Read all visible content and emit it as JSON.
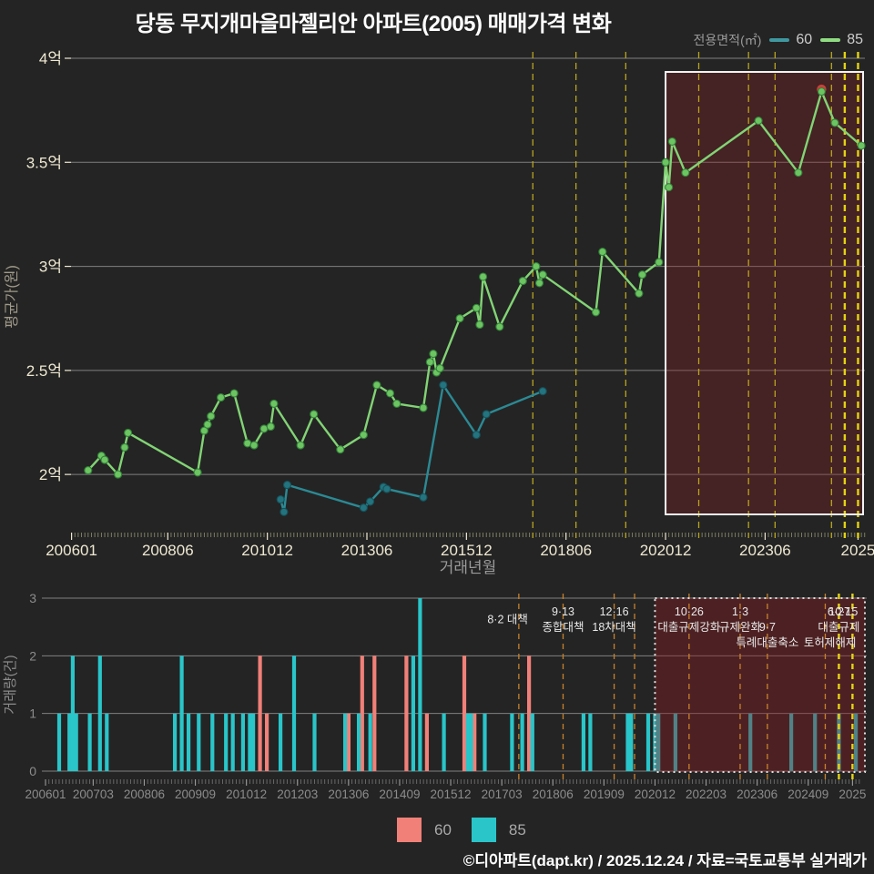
{
  "title": "당동 무지개마을마젤리안 아파트(2005) 매매가격 변화",
  "top_legend": {
    "label": "전용면적(㎡)",
    "items": [
      {
        "name": "60",
        "color": "#3f98a0"
      },
      {
        "name": "85",
        "color": "#8fdc82"
      }
    ]
  },
  "chart_data": [
    {
      "type": "line",
      "title": "매매가격 변화 (평균가)",
      "xlabel": "거래년월",
      "ylabel": "평균가(원)",
      "ylim": [
        1.7,
        4.0
      ],
      "grid": true,
      "yticks": [
        {
          "label": "2억",
          "value": 2.0
        },
        {
          "label": "2.5억",
          "value": 2.5
        },
        {
          "label": "3억",
          "value": 3.0
        },
        {
          "label": "3.5억",
          "value": 3.5
        },
        {
          "label": "4억",
          "value": 4.0
        }
      ],
      "xticks": [
        {
          "label": "200601",
          "month": "200601"
        },
        {
          "label": "200806",
          "month": "200806"
        },
        {
          "label": "201012",
          "month": "201012"
        },
        {
          "label": "201306",
          "month": "201306"
        },
        {
          "label": "201512",
          "month": "201512"
        },
        {
          "label": "201806",
          "month": "201806"
        },
        {
          "label": "202012",
          "month": "202012"
        },
        {
          "label": "202306",
          "month": "202306"
        },
        {
          "label": "2025",
          "month": "202510"
        }
      ],
      "series": [
        {
          "name": "60",
          "color": "#2b8a94",
          "marker": "#23747e",
          "edge": "#16525b",
          "points": [
            [
              "201104",
              1.88
            ],
            [
              "201105",
              1.82
            ],
            [
              "201106",
              1.95
            ],
            [
              "201305",
              1.84
            ],
            [
              "201307",
              1.87
            ],
            [
              "201311",
              1.94
            ],
            [
              "201312",
              1.93
            ],
            [
              "201411",
              1.89
            ],
            [
              "201505",
              2.43
            ],
            [
              "201603",
              2.19
            ],
            [
              "201606",
              2.29
            ],
            [
              "201711",
              2.4
            ]
          ]
        },
        {
          "name": "85",
          "color": "#82d475",
          "marker": "#6cc561",
          "edge": "#33803a",
          "points": [
            [
              "200606",
              2.02
            ],
            [
              "200610",
              2.09
            ],
            [
              "200611",
              2.07
            ],
            [
              "200703",
              2.0
            ],
            [
              "200705",
              2.13
            ],
            [
              "200706",
              2.2
            ],
            [
              "200903",
              2.01
            ],
            [
              "200905",
              2.21
            ],
            [
              "200906",
              2.24
            ],
            [
              "200907",
              2.28
            ],
            [
              "200910",
              2.37
            ],
            [
              "201002",
              2.39
            ],
            [
              "201006",
              2.15
            ],
            [
              "201008",
              2.14
            ],
            [
              "201011",
              2.22
            ],
            [
              "201101",
              2.23
            ],
            [
              "201102",
              2.34
            ],
            [
              "201110",
              2.14
            ],
            [
              "201202",
              2.29
            ],
            [
              "201210",
              2.12
            ],
            [
              "201305",
              2.19
            ],
            [
              "201309",
              2.43
            ],
            [
              "201401",
              2.39
            ],
            [
              "201403",
              2.34
            ],
            [
              "201411",
              2.32
            ],
            [
              "201501",
              2.54
            ],
            [
              "201502",
              2.58
            ],
            [
              "201503",
              2.49
            ],
            [
              "201504",
              2.51
            ],
            [
              "201510",
              2.75
            ],
            [
              "201603",
              2.8
            ],
            [
              "201604",
              2.72
            ],
            [
              "201605",
              2.95
            ],
            [
              "201610",
              2.71
            ],
            [
              "201705",
              2.93
            ],
            [
              "201709",
              3.0
            ],
            [
              "201710",
              2.92
            ],
            [
              "201711",
              2.96
            ],
            [
              "201903",
              2.78
            ],
            [
              "201905",
              3.07
            ],
            [
              "202004",
              2.87
            ],
            [
              "202005",
              2.96
            ],
            [
              "202010",
              3.02
            ],
            [
              "202012",
              3.5
            ],
            [
              "202101",
              3.38
            ],
            [
              "202102",
              3.6
            ],
            [
              "202106",
              3.45
            ],
            [
              "202304",
              3.7
            ],
            [
              "202404",
              3.45
            ],
            [
              "202411",
              3.84
            ],
            [
              "202503",
              3.69
            ],
            [
              "202511",
              3.58
            ]
          ],
          "max_point": {
            "month": "202411",
            "value": 3.84,
            "color": "#c9413a"
          }
        }
      ],
      "highlight_box": {
        "from": "202012",
        "to": "202512"
      }
    },
    {
      "type": "bar",
      "title": "거래량",
      "xlabel": "",
      "ylabel": "거래량(건)",
      "ylim": [
        0,
        3
      ],
      "grid": true,
      "yticks": [
        0,
        1,
        2,
        3
      ],
      "xticks": [
        {
          "label": "200601",
          "month": "200601"
        },
        {
          "label": "200703",
          "month": "200703"
        },
        {
          "label": "200806",
          "month": "200806"
        },
        {
          "label": "200909",
          "month": "200909"
        },
        {
          "label": "201012",
          "month": "201012"
        },
        {
          "label": "201203",
          "month": "201203"
        },
        {
          "label": "201306",
          "month": "201306"
        },
        {
          "label": "201409",
          "month": "201409"
        },
        {
          "label": "201512",
          "month": "201512"
        },
        {
          "label": "201703",
          "month": "201703"
        },
        {
          "label": "201806",
          "month": "201806"
        },
        {
          "label": "201909",
          "month": "201909"
        },
        {
          "label": "202012",
          "month": "202012"
        },
        {
          "label": "202203",
          "month": "202203"
        },
        {
          "label": "202306",
          "month": "202306"
        },
        {
          "label": "202409",
          "month": "202409"
        },
        {
          "label": "2025",
          "month": "202510"
        }
      ],
      "series": [
        {
          "name": "60",
          "color": "#f08078",
          "bars": [
            [
              "201104",
              2
            ],
            [
              "201106",
              1
            ],
            [
              "201306",
              1
            ],
            [
              "201310",
              2
            ],
            [
              "201401",
              2
            ],
            [
              "201411",
              2
            ],
            [
              "201505",
              1
            ],
            [
              "201604",
              2
            ],
            [
              "201607",
              1
            ],
            [
              "201711",
              2
            ]
          ]
        },
        {
          "name": "85",
          "color": "#29c5c9",
          "bars": [
            [
              "200605",
              1
            ],
            [
              "200608",
              1
            ],
            [
              "200609",
              2
            ],
            [
              "200610",
              1
            ],
            [
              "200702",
              1
            ],
            [
              "200705",
              2
            ],
            [
              "200707",
              1
            ],
            [
              "200903",
              1
            ],
            [
              "200905",
              2
            ],
            [
              "200907",
              1
            ],
            [
              "200910",
              1
            ],
            [
              "201002",
              1
            ],
            [
              "201006",
              1
            ],
            [
              "201008",
              1
            ],
            [
              "201011",
              1
            ],
            [
              "201101",
              1
            ],
            [
              "201102",
              1
            ],
            [
              "201110",
              1
            ],
            [
              "201202",
              2
            ],
            [
              "201208",
              1
            ],
            [
              "201305",
              1
            ],
            [
              "201309",
              1
            ],
            [
              "201401",
              1
            ],
            [
              "201501",
              2
            ],
            [
              "201503",
              3
            ],
            [
              "201510",
              1
            ],
            [
              "201605",
              1
            ],
            [
              "201606",
              1
            ],
            [
              "201610",
              1
            ],
            [
              "201706",
              1
            ],
            [
              "201709",
              1
            ],
            [
              "201712",
              1
            ],
            [
              "201903",
              1
            ],
            [
              "201905",
              1
            ],
            [
              "202004",
              1
            ],
            [
              "202005",
              1
            ],
            [
              "202010",
              1
            ],
            [
              "202012",
              1
            ],
            [
              "202101",
              1
            ],
            [
              "202106",
              1
            ],
            [
              "202304",
              1
            ],
            [
              "202404",
              1
            ],
            [
              "202411",
              1
            ],
            [
              "202506",
              1
            ],
            [
              "202511",
              1
            ]
          ]
        }
      ],
      "highlight_box": {
        "from": "202012",
        "to": "202512"
      }
    }
  ],
  "policy_lines": [
    {
      "month": "201708",
      "top": true,
      "bottom": true,
      "bright": false
    },
    {
      "month": "201809",
      "top": true,
      "bottom": true,
      "bright": false
    },
    {
      "month": "201912",
      "top": true,
      "bottom": true,
      "bright": false
    },
    {
      "month": "202006",
      "top": false,
      "bottom": true,
      "bright": false
    },
    {
      "month": "202110",
      "top": true,
      "bottom": true,
      "bright": false
    },
    {
      "month": "202301",
      "top": true,
      "bottom": true,
      "bright": false
    },
    {
      "month": "202309",
      "top": true,
      "bottom": true,
      "bright": false
    },
    {
      "month": "202502",
      "top": true,
      "bottom": true,
      "bright": false
    },
    {
      "month": "202506",
      "top": true,
      "bottom": true,
      "bright": true
    },
    {
      "month": "202510",
      "top": true,
      "bottom": true,
      "bright": true
    }
  ],
  "annotations": [
    {
      "month": "201708",
      "row": 1.5,
      "text": "8·2 대책",
      "anchor": "end",
      "dx": 10
    },
    {
      "month": "201809",
      "row": 1,
      "text": "9·13"
    },
    {
      "month": "201809",
      "row": 2,
      "text": "종합대책"
    },
    {
      "month": "201912",
      "row": 1,
      "text": "12·16"
    },
    {
      "month": "201912",
      "row": 2,
      "text": "18차대책"
    },
    {
      "month": "202110",
      "row": 1,
      "text": "10·26"
    },
    {
      "month": "202110",
      "row": 2,
      "text": "대출규제강화"
    },
    {
      "month": "202301",
      "row": 1,
      "text": "1·3"
    },
    {
      "month": "202301",
      "row": 2,
      "text": "규제완화"
    },
    {
      "month": "202309",
      "row": 2,
      "text": "9·7"
    },
    {
      "month": "202309",
      "row": 3,
      "text": "특례대출축소"
    },
    {
      "month": "202506",
      "row": 1,
      "text": "6·27"
    },
    {
      "month": "202506",
      "row": 2,
      "text": "대출규제"
    },
    {
      "month": "202510",
      "row": 1,
      "text": "10·15",
      "anchor": "end",
      "dx": 6
    },
    {
      "month": "202510",
      "row": 3,
      "text": "토허제해제",
      "anchor": "end",
      "dx": 4
    }
  ],
  "bottom_legend": {
    "items": [
      {
        "name": "60",
        "color": "#f08078"
      },
      {
        "name": "85",
        "color": "#29c5c9"
      }
    ]
  },
  "footer": "©디아파트(dapt.kr) / 2025.12.24 / 자료=국토교통부 실거래가",
  "colors": {
    "background": "#242424",
    "grid": "#7f7f7f",
    "tick_label": "#efe9d2",
    "muted_label": "#8c8c8c",
    "axis_title": "#a09a8a",
    "policy_normal_top": "#b8a51e",
    "policy_normal_bottom": "#c9812a",
    "policy_bright": "#e3d312",
    "box_fill": "#8b1e22",
    "box_border_top": "#f2f2f2",
    "box_border_bottom": "#e0e0e0",
    "annotation_text": "#e9e9e9",
    "minor_tick_top": "#86866a",
    "minor_tick_bottom": "#6f6f6f",
    "footer_text": "#ffffff"
  }
}
